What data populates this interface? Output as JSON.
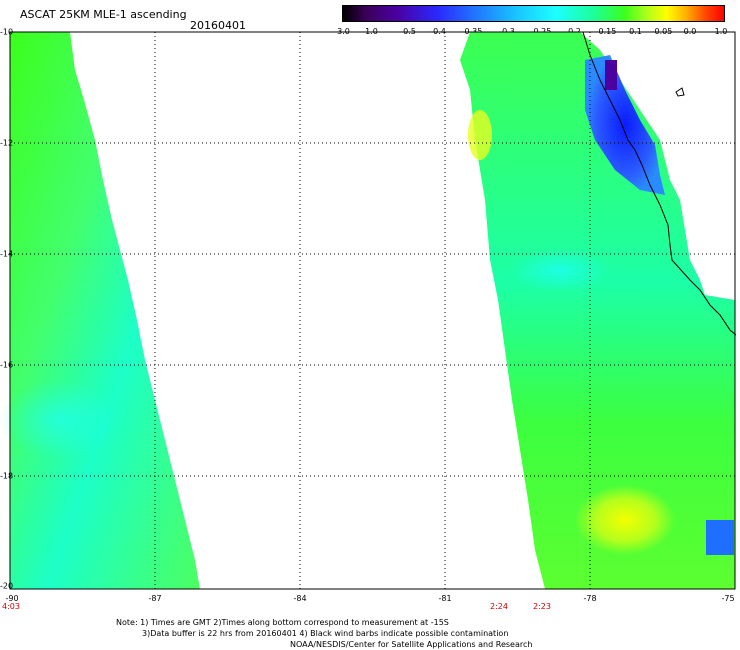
{
  "header": {
    "title": "ASCAT 25KM MLE-1 ascending",
    "date": "20160401"
  },
  "colorbar": {
    "labels": [
      "-3.0",
      "-1.0",
      "-0.5",
      "-0.4",
      "-0.35",
      "-0.3",
      "-0.25",
      "-0.2",
      "-0.15",
      "-0.1",
      "-0.05",
      "0.0",
      "1.0"
    ],
    "colors": [
      "#000000",
      "#3a0058",
      "#4b00a0",
      "#2a2aff",
      "#1f7fff",
      "#19c8ff",
      "#1cffff",
      "#1cff96",
      "#3cff1c",
      "#b4ff1c",
      "#ffff00",
      "#ffb000",
      "#ff4a00",
      "#ff0000"
    ]
  },
  "map": {
    "lat_labels": [
      "-10",
      "-12",
      "-14",
      "-16",
      "-18",
      "-20"
    ],
    "lon_labels": [
      "-90",
      "-87",
      "-84",
      "-81",
      "-78",
      "-75"
    ],
    "lon_range": [
      -90,
      -75
    ],
    "lat_range": [
      -20,
      -10
    ],
    "grid": "dotted"
  },
  "times": [
    "4:03",
    "2:24",
    "2:23"
  ],
  "notes": [
    "Note: 1) Times are GMT 2)Times along bottom correspond to measurement at -15S",
    "3)Data buffer is 22 hrs from 20160401 4) Black wind barbs indicate possible contamination",
    "NOAA/NESDIS/Center for Satellite Applications and Research"
  ]
}
